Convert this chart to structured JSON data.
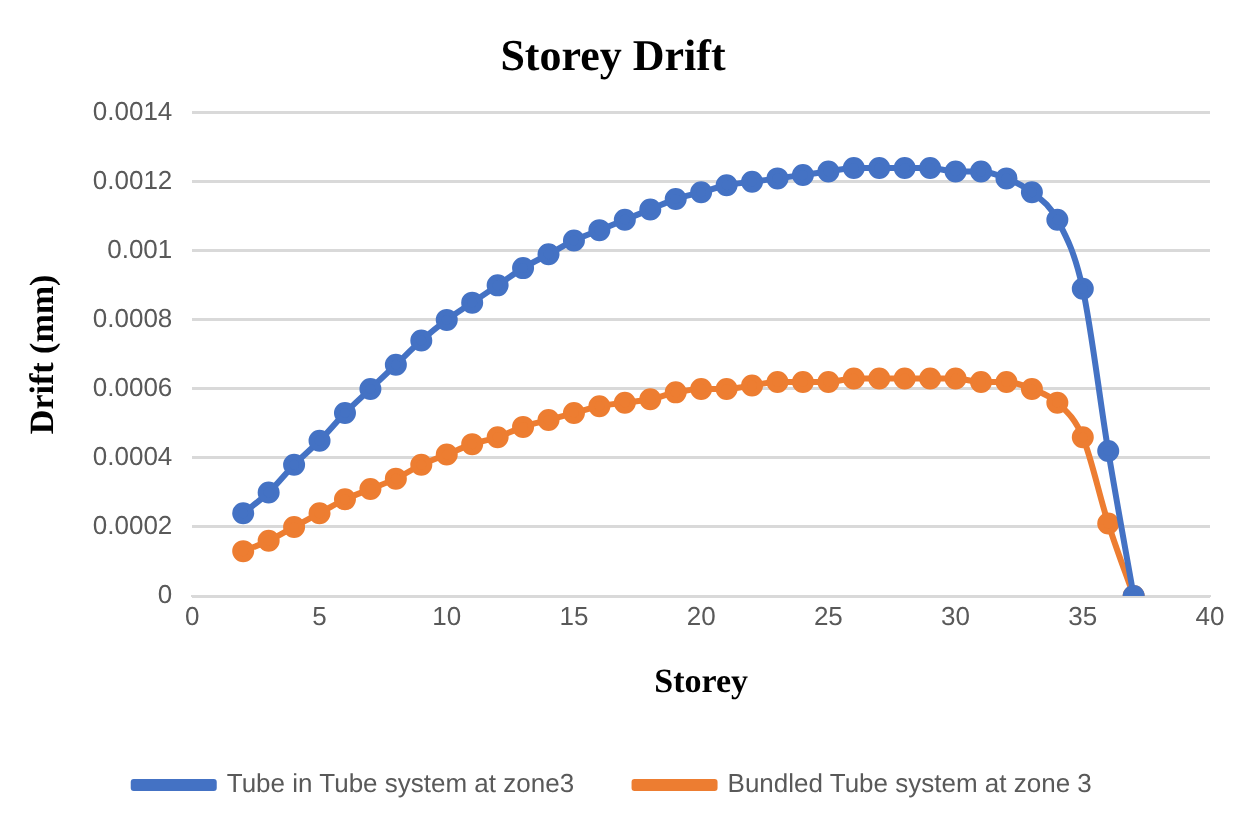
{
  "chart_data": {
    "type": "line",
    "title": "Storey Drift",
    "xlabel": "Storey",
    "ylabel": "Drift (mm)",
    "x": [
      2,
      3,
      4,
      5,
      6,
      7,
      8,
      9,
      10,
      11,
      12,
      13,
      14,
      15,
      16,
      17,
      18,
      19,
      20,
      21,
      22,
      23,
      24,
      25,
      26,
      27,
      28,
      29,
      30,
      31,
      32,
      33,
      34,
      35,
      36,
      37
    ],
    "series": [
      {
        "name": "Tube in Tube system at zone3",
        "color": "#4472c4",
        "values": [
          0.00024,
          0.0003,
          0.00038,
          0.00045,
          0.00053,
          0.0006,
          0.00067,
          0.00074,
          0.0008,
          0.00085,
          0.0009,
          0.00095,
          0.00099,
          0.00103,
          0.00106,
          0.00109,
          0.00112,
          0.00115,
          0.00117,
          0.00119,
          0.0012,
          0.00121,
          0.00122,
          0.00123,
          0.00124,
          0.00124,
          0.00124,
          0.00124,
          0.00123,
          0.00123,
          0.00121,
          0.00117,
          0.00109,
          0.00089,
          0.00042,
          0
        ]
      },
      {
        "name": "Bundled Tube system at zone 3",
        "color": "#ed7d31",
        "values": [
          0.00013,
          0.00016,
          0.0002,
          0.00024,
          0.00028,
          0.00031,
          0.00034,
          0.00038,
          0.00041,
          0.00044,
          0.00046,
          0.00049,
          0.00051,
          0.00053,
          0.00055,
          0.00056,
          0.00057,
          0.00059,
          0.0006,
          0.0006,
          0.00061,
          0.00062,
          0.00062,
          0.00062,
          0.00063,
          0.00063,
          0.00063,
          0.00063,
          0.00063,
          0.00062,
          0.00062,
          0.0006,
          0.00056,
          0.00046,
          0.00021,
          0
        ]
      }
    ],
    "xlim": [
      0,
      40
    ],
    "xticks": [
      0,
      5,
      10,
      15,
      20,
      25,
      30,
      35,
      40
    ],
    "ylim": [
      0,
      0.0014
    ],
    "yticks": [
      0,
      0.0002,
      0.0004,
      0.0006,
      0.0008,
      0.001,
      0.0012,
      0.0014
    ],
    "grid": "y",
    "legend": "bottom",
    "marker": "circle",
    "line_style": "solid"
  }
}
